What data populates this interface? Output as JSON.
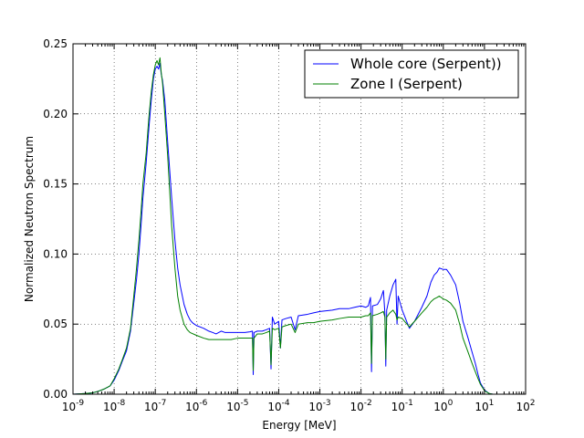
{
  "chart_data": {
    "type": "line",
    "title": "",
    "xlabel": "Energy [MeV]",
    "ylabel": "Normalized Neutron Spectrum",
    "xscale": "log",
    "xlim": [
      1e-09,
      100
    ],
    "ylim": [
      0,
      0.25
    ],
    "grid": true,
    "legend_position": "top-right",
    "x_ticks": [
      {
        "value": 1e-09,
        "base": "10",
        "exp": "-9"
      },
      {
        "value": 1e-08,
        "base": "10",
        "exp": "-8"
      },
      {
        "value": 1e-07,
        "base": "10",
        "exp": "-7"
      },
      {
        "value": 1e-06,
        "base": "10",
        "exp": "-6"
      },
      {
        "value": 1e-05,
        "base": "10",
        "exp": "-5"
      },
      {
        "value": 0.0001,
        "base": "10",
        "exp": "-4"
      },
      {
        "value": 0.001,
        "base": "10",
        "exp": "-3"
      },
      {
        "value": 0.01,
        "base": "10",
        "exp": "-2"
      },
      {
        "value": 0.1,
        "base": "10",
        "exp": "-1"
      },
      {
        "value": 1,
        "base": "10",
        "exp": "0"
      },
      {
        "value": 10,
        "base": "10",
        "exp": "1"
      },
      {
        "value": 100,
        "base": "10",
        "exp": "2"
      }
    ],
    "y_ticks": [
      {
        "value": 0.0,
        "label": "0.00"
      },
      {
        "value": 0.05,
        "label": "0.05"
      },
      {
        "value": 0.1,
        "label": "0.10"
      },
      {
        "value": 0.15,
        "label": "0.15"
      },
      {
        "value": 0.2,
        "label": "0.20"
      },
      {
        "value": 0.25,
        "label": "0.25"
      }
    ],
    "series": [
      {
        "name": "Whole core (Serpent))",
        "color": "#0000ff",
        "points": [
          [
            1e-09,
            0
          ],
          [
            2e-09,
            0.0005
          ],
          [
            3e-09,
            0.001
          ],
          [
            4e-09,
            0.002
          ],
          [
            5e-09,
            0.003
          ],
          [
            6e-09,
            0.004
          ],
          [
            7e-09,
            0.005
          ],
          [
            8e-09,
            0.006
          ],
          [
            1e-08,
            0.01
          ],
          [
            1.3e-08,
            0.017
          ],
          [
            1.6e-08,
            0.024
          ],
          [
            2e-08,
            0.031
          ],
          [
            2.5e-08,
            0.045
          ],
          [
            3e-08,
            0.065
          ],
          [
            3.5e-08,
            0.082
          ],
          [
            4e-08,
            0.1
          ],
          [
            4.5e-08,
            0.12
          ],
          [
            5e-08,
            0.14
          ],
          [
            6e-08,
            0.165
          ],
          [
            7e-08,
            0.19
          ],
          [
            8e-08,
            0.21
          ],
          [
            9e-08,
            0.225
          ],
          [
            1e-07,
            0.232
          ],
          [
            1.1e-07,
            0.234
          ],
          [
            1.2e-07,
            0.232
          ],
          [
            1.3e-07,
            0.236
          ],
          [
            1.4e-07,
            0.228
          ],
          [
            1.5e-07,
            0.224
          ],
          [
            1.7e-07,
            0.21
          ],
          [
            2e-07,
            0.18
          ],
          [
            2.5e-07,
            0.14
          ],
          [
            3e-07,
            0.11
          ],
          [
            3.5e-07,
            0.09
          ],
          [
            4e-07,
            0.078
          ],
          [
            5e-07,
            0.064
          ],
          [
            6e-07,
            0.057
          ],
          [
            7e-07,
            0.053
          ],
          [
            8e-07,
            0.051
          ],
          [
            1e-06,
            0.049
          ],
          [
            1.5e-06,
            0.047
          ],
          [
            2e-06,
            0.045
          ],
          [
            2.5e-06,
            0.044
          ],
          [
            3e-06,
            0.043
          ],
          [
            4e-06,
            0.045
          ],
          [
            5e-06,
            0.044
          ],
          [
            7e-06,
            0.044
          ],
          [
            1e-05,
            0.044
          ],
          [
            1.5e-05,
            0.044
          ],
          [
            2e-05,
            0.0445
          ],
          [
            2.3e-05,
            0.045
          ],
          [
            2.4e-05,
            0.014
          ],
          [
            2.5e-05,
            0.044
          ],
          [
            3e-05,
            0.045
          ],
          [
            4e-05,
            0.045
          ],
          [
            5e-05,
            0.046
          ],
          [
            6e-05,
            0.047
          ],
          [
            6.5e-05,
            0.018
          ],
          [
            7e-05,
            0.055
          ],
          [
            8e-05,
            0.05
          ],
          [
            0.0001,
            0.052
          ],
          [
            0.00011,
            0.033
          ],
          [
            0.00012,
            0.053
          ],
          [
            0.00015,
            0.054
          ],
          [
            0.0002,
            0.055
          ],
          [
            0.00025,
            0.046
          ],
          [
            0.0003,
            0.056
          ],
          [
            0.0005,
            0.057
          ],
          [
            0.0007,
            0.058
          ],
          [
            0.001,
            0.059
          ],
          [
            0.002,
            0.06
          ],
          [
            0.003,
            0.061
          ],
          [
            0.005,
            0.061
          ],
          [
            0.007,
            0.062
          ],
          [
            0.01,
            0.063
          ],
          [
            0.013,
            0.062
          ],
          [
            0.015,
            0.063
          ],
          [
            0.017,
            0.069
          ],
          [
            0.018,
            0.016
          ],
          [
            0.019,
            0.063
          ],
          [
            0.025,
            0.064
          ],
          [
            0.03,
            0.068
          ],
          [
            0.035,
            0.074
          ],
          [
            0.038,
            0.058
          ],
          [
            0.04,
            0.02
          ],
          [
            0.042,
            0.06
          ],
          [
            0.05,
            0.07
          ],
          [
            0.06,
            0.078
          ],
          [
            0.07,
            0.082
          ],
          [
            0.075,
            0.05
          ],
          [
            0.08,
            0.07
          ],
          [
            0.1,
            0.06
          ],
          [
            0.15,
            0.047
          ],
          [
            0.2,
            0.052
          ],
          [
            0.3,
            0.062
          ],
          [
            0.4,
            0.07
          ],
          [
            0.5,
            0.08
          ],
          [
            0.6,
            0.085
          ],
          [
            0.7,
            0.087
          ],
          [
            0.8,
            0.09
          ],
          [
            1,
            0.089
          ],
          [
            1.2,
            0.089
          ],
          [
            1.5,
            0.085
          ],
          [
            2,
            0.078
          ],
          [
            2.5,
            0.065
          ],
          [
            3,
            0.052
          ],
          [
            4,
            0.04
          ],
          [
            5,
            0.03
          ],
          [
            6,
            0.022
          ],
          [
            7,
            0.014
          ],
          [
            8,
            0.008
          ],
          [
            10.0,
            0.003
          ],
          [
            13.0,
            0.0005
          ],
          [
            16.0,
            0
          ]
        ]
      },
      {
        "name": "Zone I (Serpent)",
        "color": "#008000",
        "points": [
          [
            1e-09,
            0
          ],
          [
            2e-09,
            0.0005
          ],
          [
            3e-09,
            0.001
          ],
          [
            4e-09,
            0.002
          ],
          [
            5e-09,
            0.003
          ],
          [
            6e-09,
            0.004
          ],
          [
            8e-09,
            0.006
          ],
          [
            1e-08,
            0.011
          ],
          [
            1.3e-08,
            0.018
          ],
          [
            1.6e-08,
            0.025
          ],
          [
            2e-08,
            0.033
          ],
          [
            2.5e-08,
            0.047
          ],
          [
            3e-08,
            0.07
          ],
          [
            3.5e-08,
            0.09
          ],
          [
            4e-08,
            0.11
          ],
          [
            4.5e-08,
            0.13
          ],
          [
            5e-08,
            0.15
          ],
          [
            6e-08,
            0.172
          ],
          [
            7e-08,
            0.198
          ],
          [
            8e-08,
            0.216
          ],
          [
            9e-08,
            0.228
          ],
          [
            1e-07,
            0.235
          ],
          [
            1.1e-07,
            0.238
          ],
          [
            1.2e-07,
            0.235
          ],
          [
            1.3e-07,
            0.24
          ],
          [
            1.4e-07,
            0.229
          ],
          [
            1.5e-07,
            0.222
          ],
          [
            1.7e-07,
            0.2
          ],
          [
            2e-07,
            0.17
          ],
          [
            2.5e-07,
            0.12
          ],
          [
            3e-07,
            0.09
          ],
          [
            3.5e-07,
            0.07
          ],
          [
            4e-07,
            0.06
          ],
          [
            5e-07,
            0.05
          ],
          [
            6e-07,
            0.046
          ],
          [
            7e-07,
            0.044
          ],
          [
            1e-06,
            0.042
          ],
          [
            1.5e-06,
            0.04
          ],
          [
            2e-06,
            0.039
          ],
          [
            3e-06,
            0.039
          ],
          [
            5e-06,
            0.039
          ],
          [
            7e-06,
            0.039
          ],
          [
            1e-05,
            0.04
          ],
          [
            1.5e-05,
            0.04
          ],
          [
            2e-05,
            0.04
          ],
          [
            2.3e-05,
            0.04
          ],
          [
            2.4e-05,
            0.017
          ],
          [
            2.5e-05,
            0.04
          ],
          [
            3e-05,
            0.043
          ],
          [
            4e-05,
            0.043
          ],
          [
            5e-05,
            0.044
          ],
          [
            6e-05,
            0.045
          ],
          [
            6.5e-05,
            0.021
          ],
          [
            7e-05,
            0.047
          ],
          [
            8e-05,
            0.046
          ],
          [
            0.0001,
            0.047
          ],
          [
            0.00011,
            0.033
          ],
          [
            0.00012,
            0.048
          ],
          [
            0.00015,
            0.049
          ],
          [
            0.0002,
            0.05
          ],
          [
            0.00025,
            0.044
          ],
          [
            0.0003,
            0.05
          ],
          [
            0.0005,
            0.051
          ],
          [
            0.0007,
            0.051
          ],
          [
            0.001,
            0.052
          ],
          [
            0.002,
            0.053
          ],
          [
            0.003,
            0.054
          ],
          [
            0.005,
            0.055
          ],
          [
            0.007,
            0.055
          ],
          [
            0.01,
            0.055
          ],
          [
            0.013,
            0.056
          ],
          [
            0.015,
            0.056
          ],
          [
            0.017,
            0.058
          ],
          [
            0.018,
            0.022
          ],
          [
            0.019,
            0.056
          ],
          [
            0.025,
            0.057
          ],
          [
            0.03,
            0.058
          ],
          [
            0.035,
            0.059
          ],
          [
            0.038,
            0.055
          ],
          [
            0.04,
            0.025
          ],
          [
            0.042,
            0.055
          ],
          [
            0.05,
            0.058
          ],
          [
            0.06,
            0.06
          ],
          [
            0.07,
            0.057
          ],
          [
            0.075,
            0.053
          ],
          [
            0.08,
            0.055
          ],
          [
            0.1,
            0.054
          ],
          [
            0.15,
            0.048
          ],
          [
            0.2,
            0.052
          ],
          [
            0.3,
            0.058
          ],
          [
            0.4,
            0.062
          ],
          [
            0.5,
            0.066
          ],
          [
            0.6,
            0.068
          ],
          [
            0.7,
            0.069
          ],
          [
            0.8,
            0.07
          ],
          [
            1,
            0.068
          ],
          [
            1.2,
            0.067
          ],
          [
            1.5,
            0.065
          ],
          [
            2,
            0.06
          ],
          [
            2.5,
            0.05
          ],
          [
            3,
            0.04
          ],
          [
            4,
            0.03
          ],
          [
            5,
            0.022
          ],
          [
            6,
            0.016
          ],
          [
            7,
            0.011
          ],
          [
            8,
            0.007
          ],
          [
            10.0,
            0.0025
          ],
          [
            13.0,
            0.0005
          ],
          [
            16.0,
            0
          ]
        ]
      }
    ]
  }
}
